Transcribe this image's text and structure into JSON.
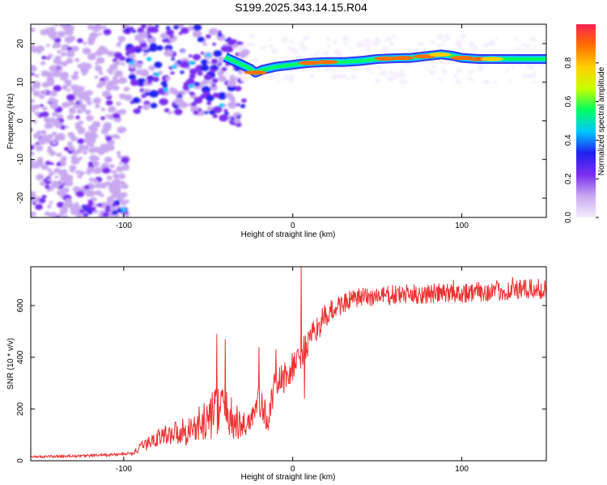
{
  "title": "S199.2025.343.14.15.R04",
  "colors": {
    "plot_line": "#ee3333",
    "background": "#ffffff",
    "axis": "#000000"
  },
  "chart_data": [
    {
      "type": "heatmap",
      "xlabel": "Height of straight line (km)",
      "ylabel": "Frequency (Hz)",
      "xlim": [
        -155,
        150
      ],
      "ylim": [
        -25,
        25
      ],
      "x_ticks": [
        "-100",
        "0",
        "100"
      ],
      "y_ticks": [
        "-20",
        "-10",
        "0",
        "10",
        "20"
      ],
      "colorbar": {
        "label": "Normalized spectral amplitude",
        "ticks": [
          "0.0",
          "0.2",
          "0.4",
          "0.6",
          "0.8"
        ],
        "range": [
          0,
          1
        ],
        "colormap": [
          "#f4eefe",
          "#c8a8f0",
          "#7a2ef0",
          "#2020f0",
          "#00c8ff",
          "#00ff60",
          "#c8ff00",
          "#ffd000",
          "#ff7000",
          "#ff2050"
        ]
      },
      "ridge": {
        "points": [
          [
            -40,
            16.5
          ],
          [
            -35,
            15.5
          ],
          [
            -30,
            14.5
          ],
          [
            -25,
            13.5
          ],
          [
            -22,
            12.5
          ],
          [
            -18,
            13.2
          ],
          [
            -10,
            14.0
          ],
          [
            0,
            14.5
          ],
          [
            5,
            14.8
          ],
          [
            10,
            15.0
          ],
          [
            20,
            15.2
          ],
          [
            30,
            15.2
          ],
          [
            40,
            15.5
          ],
          [
            50,
            16.0
          ],
          [
            60,
            16.2
          ],
          [
            70,
            16.3
          ],
          [
            80,
            16.8
          ],
          [
            88,
            17.2
          ],
          [
            95,
            16.8
          ],
          [
            100,
            16.3
          ],
          [
            110,
            16.0
          ],
          [
            120,
            16.0
          ],
          [
            130,
            16.0
          ],
          [
            140,
            16.0
          ],
          [
            150,
            16.0
          ]
        ],
        "peak_amplitudes": [
          [
            -22,
            0.9
          ],
          [
            10,
            0.85
          ],
          [
            20,
            0.85
          ],
          [
            55,
            0.9
          ],
          [
            65,
            0.9
          ],
          [
            78,
            0.9
          ],
          [
            87,
            0.8
          ],
          [
            100,
            0.9
          ],
          [
            110,
            0.85
          ],
          [
            118,
            0.8
          ]
        ]
      }
    },
    {
      "type": "line",
      "xlabel": "Height of straight line (km)",
      "ylabel": "SNR (10 * v/v)",
      "xlim": [
        -155,
        150
      ],
      "ylim": [
        0,
        750
      ],
      "x_ticks": [
        "-100",
        "0",
        "100"
      ],
      "y_ticks": [
        "0",
        "200",
        "400",
        "600"
      ],
      "trend": {
        "x": [
          -155,
          -130,
          -110,
          -95,
          -90,
          -80,
          -70,
          -60,
          -50,
          -45,
          -40,
          -35,
          -30,
          -25,
          -20,
          -15,
          -10,
          -5,
          0,
          5,
          10,
          15,
          20,
          25,
          30,
          40,
          50,
          60,
          80,
          100,
          120,
          150
        ],
        "y": [
          15,
          18,
          22,
          28,
          50,
          90,
          110,
          120,
          160,
          200,
          210,
          150,
          130,
          160,
          230,
          160,
          300,
          320,
          360,
          410,
          460,
          520,
          560,
          590,
          610,
          630,
          635,
          640,
          645,
          650,
          655,
          665
        ]
      },
      "noise_amplitude": {
        "x": [
          -155,
          -95,
          -90,
          -60,
          -45,
          -35,
          -25,
          -20,
          -10,
          0,
          20,
          30,
          60,
          150
        ],
        "y": [
          4,
          6,
          20,
          60,
          100,
          80,
          50,
          60,
          60,
          60,
          50,
          40,
          40,
          40
        ]
      },
      "spikes": [
        [
          -45,
          490
        ],
        [
          -40,
          470
        ],
        [
          -20,
          440
        ],
        [
          -10,
          430
        ],
        [
          5,
          750
        ],
        [
          7,
          240
        ],
        [
          95,
          700
        ],
        [
          130,
          710
        ]
      ]
    }
  ]
}
